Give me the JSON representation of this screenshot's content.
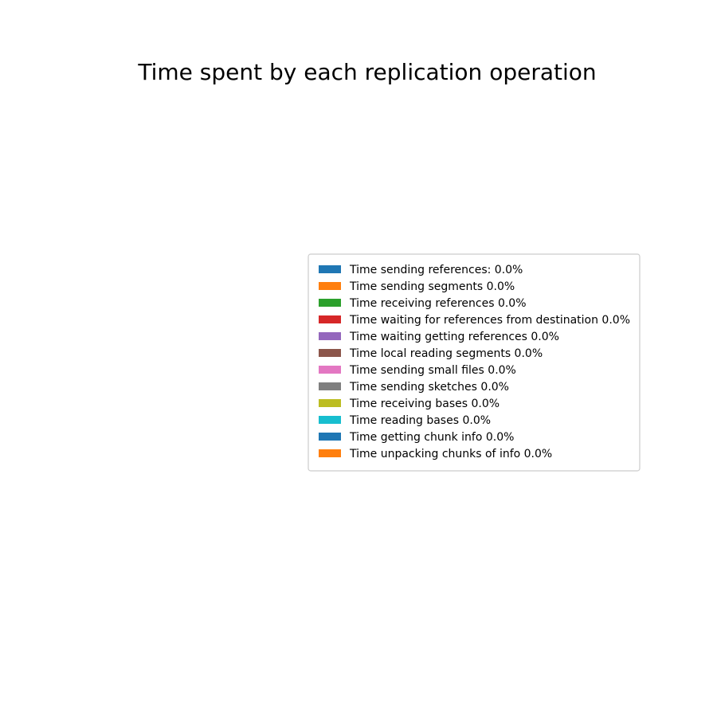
{
  "chart_data": {
    "type": "pie",
    "title": "Time spent by each replication operation",
    "legend_position": "center-right",
    "series": [
      {
        "name": "Time sending references: 0.0%",
        "value": 0.0,
        "color": "#1f77b4"
      },
      {
        "name": "Time sending segments 0.0%",
        "value": 0.0,
        "color": "#ff7f0e"
      },
      {
        "name": "Time receiving references 0.0%",
        "value": 0.0,
        "color": "#2ca02c"
      },
      {
        "name": "Time waiting for references from destination 0.0%",
        "value": 0.0,
        "color": "#d62728"
      },
      {
        "name": "Time waiting getting references 0.0%",
        "value": 0.0,
        "color": "#9467bd"
      },
      {
        "name": "Time local reading segments 0.0%",
        "value": 0.0,
        "color": "#8c564b"
      },
      {
        "name": "Time sending small files 0.0%",
        "value": 0.0,
        "color": "#e377c2"
      },
      {
        "name": "Time sending sketches 0.0%",
        "value": 0.0,
        "color": "#7f7f7f"
      },
      {
        "name": "Time receiving bases 0.0%",
        "value": 0.0,
        "color": "#bcbd22"
      },
      {
        "name": "Time reading bases 0.0%",
        "value": 0.0,
        "color": "#17becf"
      },
      {
        "name": "Time getting chunk info 0.0%",
        "value": 0.0,
        "color": "#1f77b4"
      },
      {
        "name": "Time unpacking chunks of info 0.0%",
        "value": 0.0,
        "color": "#ff7f0e"
      }
    ]
  }
}
